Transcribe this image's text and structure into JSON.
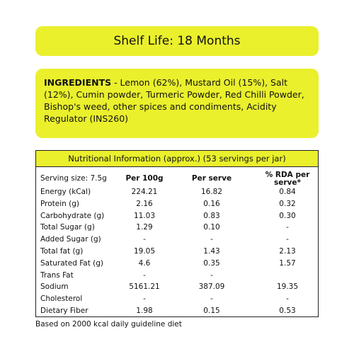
{
  "shelf_life": "Shelf Life: 18 Months",
  "ingredients": {
    "label": "INGREDIENTS",
    "text": " - Lemon (62%), Mustard Oil (15%), Salt (12%), Cumin powder, Turmeric Powder, Red Chilli Powder, Bishop's weed, other spices and condiments, Acidity Regulator (INS260)"
  },
  "table": {
    "title": "Nutritional Information (approx.) (53 servings per jar)",
    "header": [
      "Serving size: 7.5g",
      "Per 100g",
      "Per serve",
      "% RDA per serve*"
    ],
    "rows": [
      [
        "Energy (kCal)",
        "224.21",
        "16.82",
        "0.84"
      ],
      [
        "Protein (g)",
        "2.16",
        "0.16",
        "0.32"
      ],
      [
        "Carbohydrate (g)",
        "11.03",
        "0.83",
        "0.30"
      ],
      [
        "Total Sugar (g)",
        "1.29",
        "0.10",
        "-"
      ],
      [
        "Added Sugar (g)",
        "-",
        "-",
        "-"
      ],
      [
        "Total fat (g)",
        "19.05",
        "1.43",
        "2.13"
      ],
      [
        "Saturated Fat (g)",
        "4.6",
        "0.35",
        "1.57"
      ],
      [
        "Trans Fat",
        "-",
        "-",
        ""
      ],
      [
        "Sodium",
        "5161.21",
        "387.09",
        "19.35"
      ],
      [
        "Cholesterol",
        "-",
        "-",
        "-"
      ],
      [
        "Dietary Fiber",
        "1.98",
        "0.15",
        "0.53"
      ]
    ]
  },
  "footnote": "Based on 2000 kcal daily guideline diet"
}
